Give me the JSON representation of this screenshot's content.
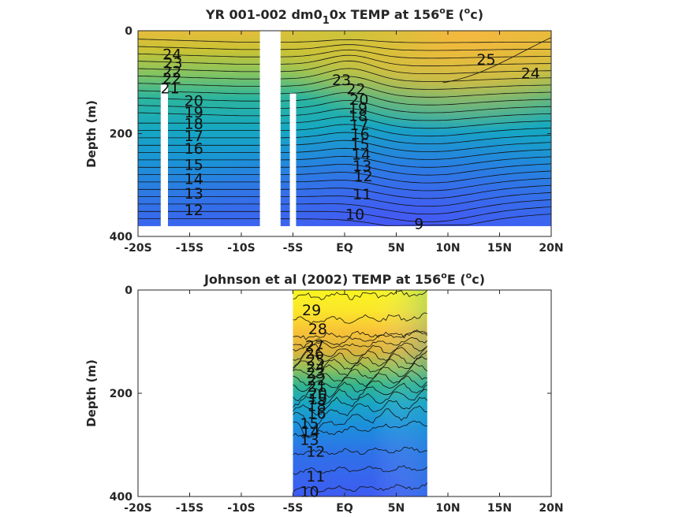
{
  "chart_data": [
    {
      "type": "heatmap",
      "title_parts": [
        "YR 001-002 dm0",
        "1",
        "0x TEMP at 156",
        "o",
        "E (",
        "o",
        "c)"
      ],
      "ylabel": "Depth (m)",
      "xlim": [
        -20,
        20
      ],
      "ylim": [
        0,
        400
      ],
      "xticks": [
        -20,
        -15,
        -10,
        -5,
        0,
        5,
        10,
        15,
        20
      ],
      "xtick_labels": [
        "-20S",
        "-15S",
        "-10S",
        "-5S",
        "EQ",
        "5N",
        "10N",
        "15N",
        "20N"
      ],
      "yticks": [
        0,
        200,
        400
      ],
      "ytick_labels": [
        "0",
        "200",
        "400"
      ],
      "data_extent": {
        "lat": [
          -20,
          20
        ],
        "depth": [
          0,
          380
        ]
      },
      "missing_bands": [
        {
          "lat": [
            -17.8,
            -17.1
          ],
          "depth_from": 105
        },
        {
          "lat": [
            -8.2,
            -6.2
          ],
          "depth_from": 0
        },
        {
          "lat": [
            -5.3,
            -4.7
          ],
          "depth_from": 122
        }
      ],
      "contour_labels": [
        {
          "text": "24",
          "lat": -16.7,
          "depth": 45
        },
        {
          "text": "23",
          "lat": -16.6,
          "depth": 62
        },
        {
          "text": "22",
          "lat": -16.7,
          "depth": 79
        },
        {
          "text": "22",
          "lat": -16.7,
          "depth": 92
        },
        {
          "text": "21",
          "lat": -16.9,
          "depth": 111
        },
        {
          "text": "20",
          "lat": -14.6,
          "depth": 136
        },
        {
          "text": "19",
          "lat": -14.6,
          "depth": 158
        },
        {
          "text": "18",
          "lat": -14.6,
          "depth": 180
        },
        {
          "text": "17",
          "lat": -14.6,
          "depth": 204
        },
        {
          "text": "16",
          "lat": -14.6,
          "depth": 228
        },
        {
          "text": "15",
          "lat": -14.6,
          "depth": 260
        },
        {
          "text": "14",
          "lat": -14.6,
          "depth": 287
        },
        {
          "text": "13",
          "lat": -14.6,
          "depth": 316
        },
        {
          "text": "12",
          "lat": -14.6,
          "depth": 348
        },
        {
          "text": "23",
          "lat": -0.3,
          "depth": 95
        },
        {
          "text": "22",
          "lat": 1.1,
          "depth": 113
        },
        {
          "text": "20",
          "lat": 1.4,
          "depth": 133
        },
        {
          "text": "19",
          "lat": 1.3,
          "depth": 150
        },
        {
          "text": "18",
          "lat": 1.3,
          "depth": 165
        },
        {
          "text": "17",
          "lat": 1.4,
          "depth": 182
        },
        {
          "text": "16",
          "lat": 1.5,
          "depth": 200
        },
        {
          "text": "15",
          "lat": 1.5,
          "depth": 220
        },
        {
          "text": "14",
          "lat": 1.6,
          "depth": 240
        },
        {
          "text": "13",
          "lat": 1.7,
          "depth": 262
        },
        {
          "text": "12",
          "lat": 1.8,
          "depth": 282
        },
        {
          "text": "11",
          "lat": 1.7,
          "depth": 317
        },
        {
          "text": "10",
          "lat": 1.0,
          "depth": 356
        },
        {
          "text": "9",
          "lat": 7.2,
          "depth": 375
        },
        {
          "text": "25",
          "lat": 13.7,
          "depth": 55
        },
        {
          "text": "24",
          "lat": 18.0,
          "depth": 82
        }
      ]
    },
    {
      "type": "heatmap",
      "title_parts": [
        "Johnson et al (2002) TEMP at 156",
        "o",
        "E (",
        "o",
        "c)"
      ],
      "ylabel": "Depth (m)",
      "xlim": [
        -20,
        20
      ],
      "ylim": [
        0,
        400
      ],
      "xticks": [
        -20,
        -15,
        -10,
        -5,
        0,
        5,
        10,
        15,
        20
      ],
      "xtick_labels": [
        "-20S",
        "-15S",
        "-10S",
        "-5S",
        "EQ",
        "5N",
        "10N",
        "15N",
        "20N"
      ],
      "yticks": [
        0,
        200,
        400
      ],
      "ytick_labels": [
        "0",
        "200",
        "400"
      ],
      "data_extent": {
        "lat": [
          -5,
          8
        ],
        "depth": [
          0,
          400
        ]
      },
      "contour_labels": [
        {
          "text": "29",
          "lat": -3.2,
          "depth": 38
        },
        {
          "text": "28",
          "lat": -2.6,
          "depth": 75
        },
        {
          "text": "27",
          "lat": -2.9,
          "depth": 108
        },
        {
          "text": "26",
          "lat": -2.9,
          "depth": 122
        },
        {
          "text": "25",
          "lat": -2.8,
          "depth": 135
        },
        {
          "text": "24",
          "lat": -2.8,
          "depth": 148
        },
        {
          "text": "23",
          "lat": -2.8,
          "depth": 160
        },
        {
          "text": "22",
          "lat": -2.7,
          "depth": 173
        },
        {
          "text": "21",
          "lat": -2.7,
          "depth": 186
        },
        {
          "text": "20",
          "lat": -2.6,
          "depth": 199
        },
        {
          "text": "19",
          "lat": -2.6,
          "depth": 211
        },
        {
          "text": "18",
          "lat": -2.7,
          "depth": 224
        },
        {
          "text": "16",
          "lat": -2.7,
          "depth": 238
        },
        {
          "text": "15",
          "lat": -3.4,
          "depth": 258
        },
        {
          "text": "14",
          "lat": -3.3,
          "depth": 273
        },
        {
          "text": "13",
          "lat": -3.4,
          "depth": 289
        },
        {
          "text": "12",
          "lat": -2.8,
          "depth": 312
        },
        {
          "text": "11",
          "lat": -2.8,
          "depth": 360
        },
        {
          "text": "10",
          "lat": -3.4,
          "depth": 390
        }
      ]
    }
  ]
}
